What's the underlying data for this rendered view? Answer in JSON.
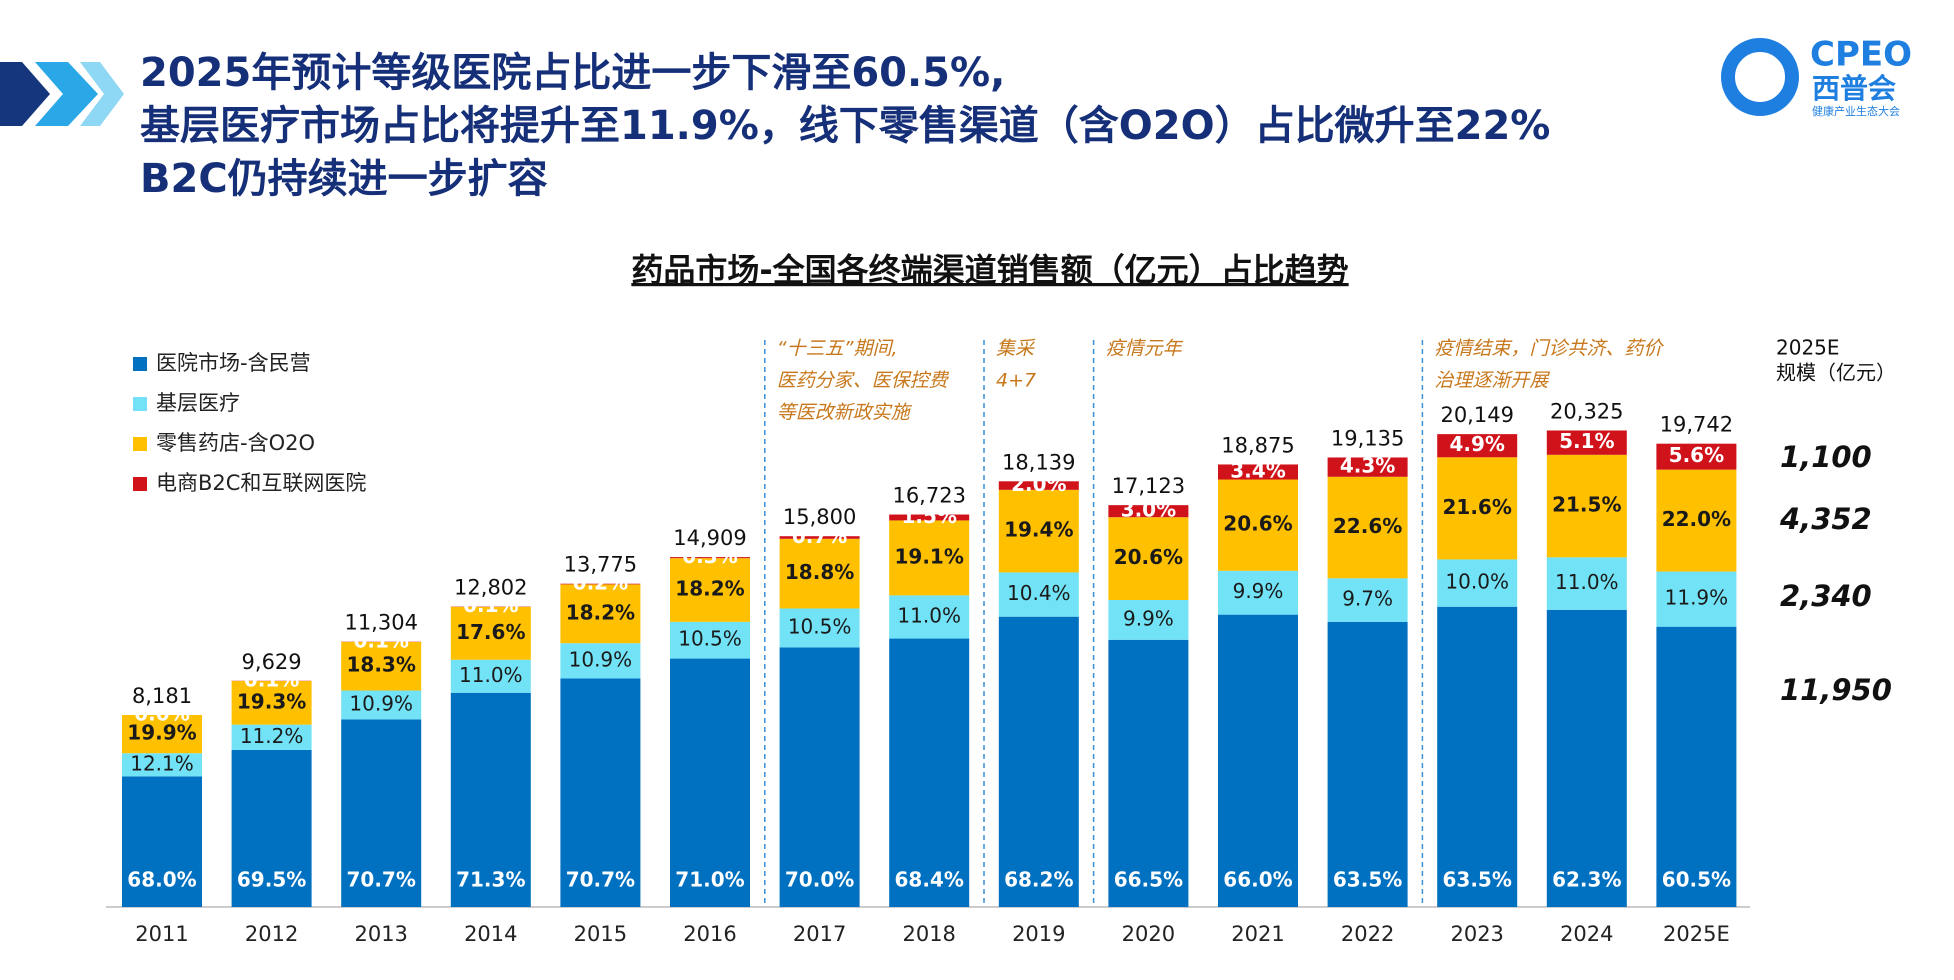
{
  "header": {
    "title_lines": [
      "2025年预计等级医院占比进一步下滑至60.5%,",
      "基层医疗市场占比将提升至11.9%，线下零售渠道（含O2O）占比微升至22%",
      "B2C仍持续进一步扩容"
    ],
    "logo": {
      "mark": "CPEO",
      "name": "西普会",
      "tagline": "健康产业生态大会"
    }
  },
  "chart_data": {
    "type": "stacked-share-bar",
    "title": "药品市场-全国各终端渠道销售额（亿元）占比趋势",
    "categories": [
      "2011",
      "2012",
      "2013",
      "2014",
      "2015",
      "2016",
      "2017",
      "2018",
      "2019",
      "2020",
      "2021",
      "2022",
      "2023",
      "2024",
      "2025E"
    ],
    "totals": {
      "values": [
        8181,
        9629,
        11304,
        12802,
        13775,
        14909,
        15800,
        16723,
        18139,
        17123,
        18875,
        19135,
        20149,
        20325,
        19742
      ],
      "value_labels": [
        "8,181",
        "9,629",
        "11,304",
        "12,802",
        "13,775",
        "14,909",
        "15,800",
        "16,723",
        "18,139",
        "17,123",
        "18,875",
        "19,135",
        "20,149",
        "20,325",
        "19,742"
      ]
    },
    "series": [
      {
        "name": "医院市场-含民营",
        "color": "#0070c0",
        "label_color": "#ffffff",
        "label_bold": true,
        "values": [
          68.0,
          69.5,
          70.7,
          71.3,
          70.7,
          71.0,
          70.0,
          68.4,
          68.2,
          66.5,
          66.0,
          63.5,
          63.5,
          62.3,
          60.5
        ],
        "value_labels": [
          "68.0%",
          "69.5%",
          "70.7%",
          "71.3%",
          "70.7%",
          "71.0%",
          "70.0%",
          "68.4%",
          "68.2%",
          "66.5%",
          "66.0%",
          "63.5%",
          "63.5%",
          "62.3%",
          "60.5%"
        ]
      },
      {
        "name": "基层医疗",
        "color": "#72e2f6",
        "label_color": "#1a1a1a",
        "label_bold": false,
        "values": [
          12.1,
          11.2,
          10.9,
          11.0,
          10.9,
          10.5,
          10.5,
          11.0,
          10.4,
          9.9,
          9.9,
          9.7,
          10.0,
          11.0,
          11.9
        ],
        "value_labels": [
          "12.1%",
          "11.2%",
          "10.9%",
          "11.0%",
          "10.9%",
          "10.5%",
          "10.5%",
          "11.0%",
          "10.4%",
          "9.9%",
          "9.9%",
          "9.7%",
          "10.0%",
          "11.0%",
          "11.9%"
        ]
      },
      {
        "name": "零售药店-含O2O",
        "color": "#ffc000",
        "label_color": "#1a1a1a",
        "label_bold": true,
        "values": [
          19.9,
          19.3,
          18.3,
          17.6,
          18.2,
          18.2,
          18.8,
          19.1,
          19.4,
          20.6,
          20.6,
          22.6,
          21.6,
          21.5,
          22.0
        ],
        "value_labels": [
          "19.9%",
          "19.3%",
          "18.3%",
          "17.6%",
          "18.2%",
          "18.2%",
          "18.8%",
          "19.1%",
          "19.4%",
          "20.6%",
          "20.6%",
          "22.6%",
          "21.6%",
          "21.5%",
          "22.0%"
        ]
      },
      {
        "name": "电商B2C和互联网医院",
        "color": "#d0121b",
        "label_color": "#ffffff",
        "label_bold": true,
        "values": [
          0.0,
          0.1,
          0.1,
          0.1,
          0.2,
          0.3,
          0.7,
          1.5,
          2.0,
          3.0,
          3.4,
          4.3,
          4.9,
          5.1,
          5.6
        ],
        "value_labels": [
          "0.0%",
          "0.1%",
          "0.1%",
          "0.1%",
          "0.2%",
          "0.3%",
          "0.7%",
          "1.5%",
          "2.0%",
          "3.0%",
          "3.4%",
          "4.3%",
          "4.9%",
          "5.1%",
          "5.6%"
        ]
      }
    ],
    "annotations": [
      {
        "from": "2017",
        "lines": [
          "“十三五”期间,",
          "医药分家、医保控费",
          "等医改新政实施"
        ]
      },
      {
        "from": "2019",
        "lines": [
          "集采",
          "4+7"
        ]
      },
      {
        "from": "2020",
        "lines": [
          "疫情元年"
        ]
      },
      {
        "from": "2023",
        "lines": [
          "疫情结束，门诊共济、药价",
          "治理逐渐开展"
        ]
      }
    ],
    "scale_2025": {
      "title": "2025E",
      "subtitle": "规模（亿元）",
      "values": [
        1100,
        4352,
        2340,
        11950
      ],
      "value_labels": [
        "1,100",
        "4,352",
        "2,340",
        "11,950"
      ]
    }
  }
}
